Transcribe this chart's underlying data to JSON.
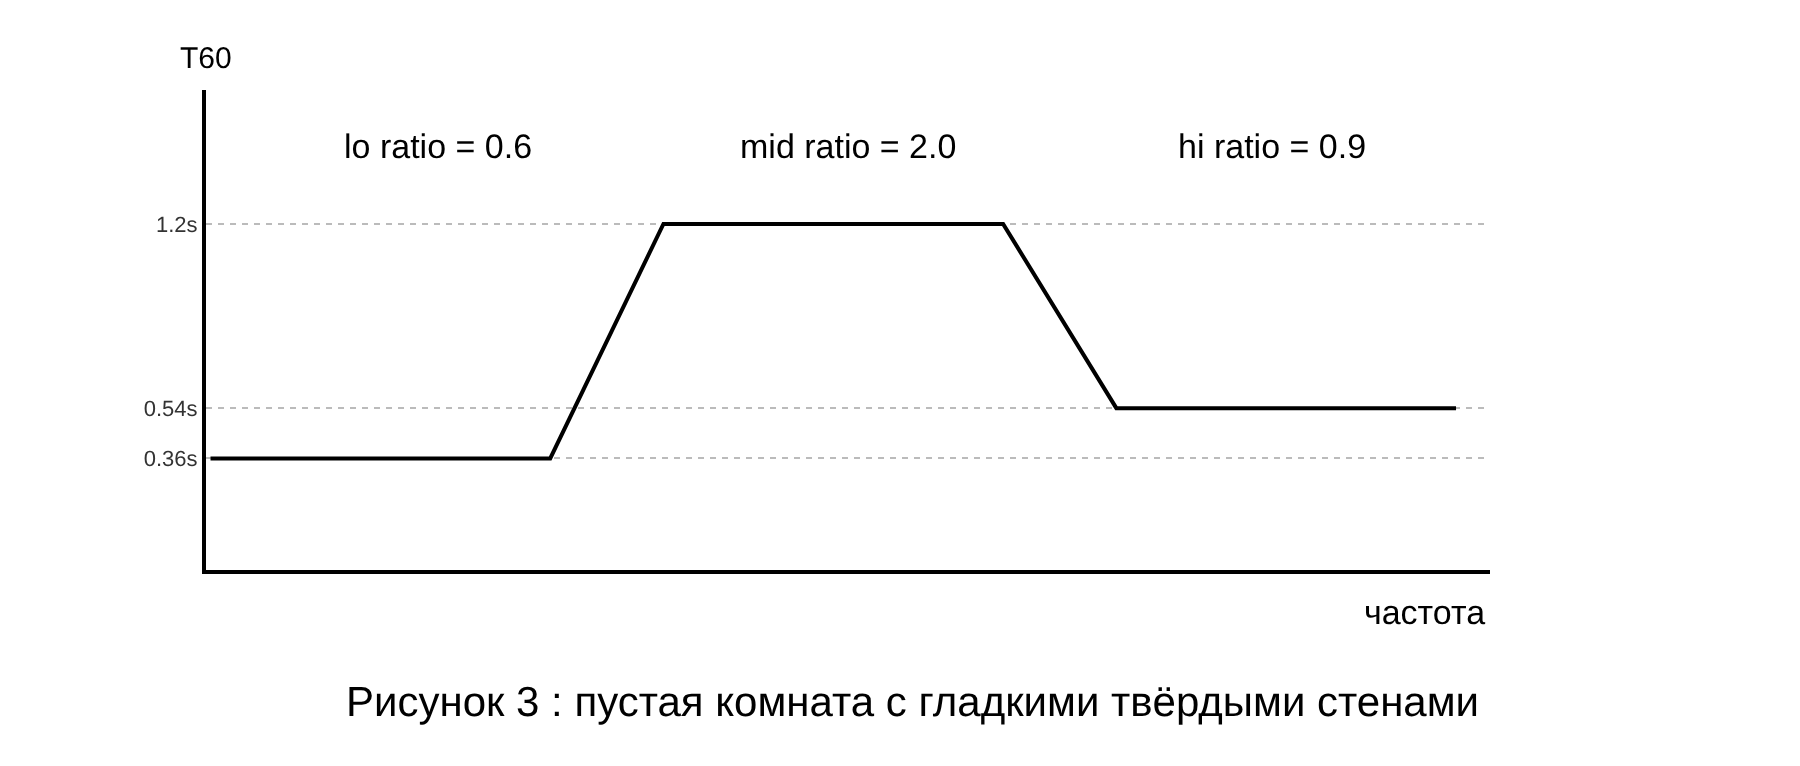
{
  "chart_data": {
    "type": "line",
    "categories": [
      null,
      null,
      null,
      null,
      null,
      null,
      null,
      null,
      null,
      null,
      null,
      null
    ],
    "series": [
      {
        "color": "#000000",
        "values": [
          0.36,
          0.36,
          0.36,
          0.36,
          1.2,
          1.2,
          1.2,
          1.2,
          0.54,
          0.54,
          0.54,
          0.54
        ]
      }
    ],
    "ylim": [
      -0.04,
      1.68
    ],
    "yticks": [
      {
        "value": 0.36,
        "label": "0.36s"
      },
      {
        "value": 0.54,
        "label": "0.54s"
      },
      {
        "value": 1.2,
        "label": "1.2s"
      }
    ],
    "tick_labels": "y",
    "grid": "y",
    "marker": "none",
    "line_style": "solid",
    "legend": false,
    "ylabel": "T60",
    "xlabel": "частота",
    "annotations": [
      "lo ratio = 0.6",
      "mid ratio = 2.0",
      "hi ratio = 0.9",
      "Рисунок 3 : пустая комната с гладкими твёрдыми стенами"
    ]
  }
}
